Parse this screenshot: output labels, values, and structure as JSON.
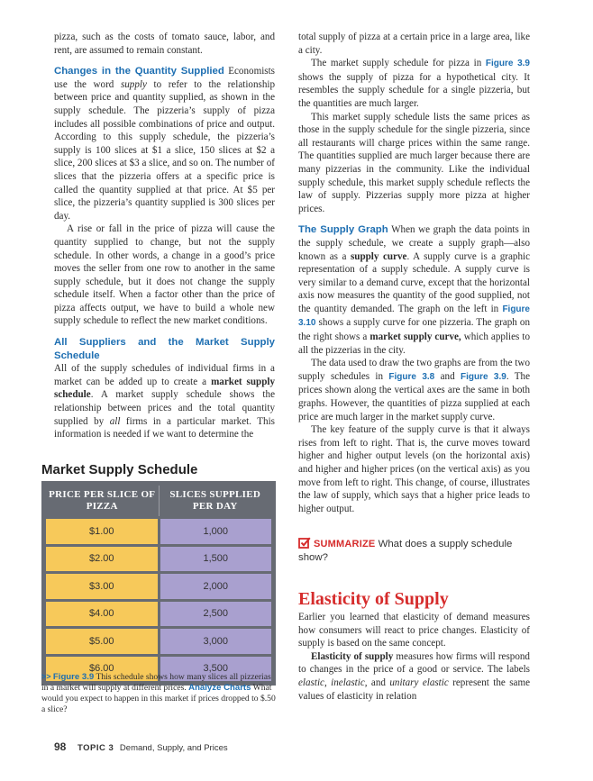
{
  "left_column": {
    "p1": "pizza, such as the costs of tomato sauce, labor, and rent, are assumed to remain constant.",
    "p2_heading": "Changes in the Quantity Supplied",
    "p2_a": " Economists use the word ",
    "p2_italic": "supply",
    "p2_b": " to refer to the relationship between price and quantity supplied, as shown in the supply schedule. The pizzeria’s supply of pizza includes all possible combinations of price and output. According to this supply schedule, the pizzeria’s supply is 100 slices at $1 a slice, 150 slices at $2 a slice, 200 slices at $3 a slice, and so on. The number of slices that the pizzeria offers at a specific price is called the quantity supplied at that price. At $5 per slice, the pizzeria’s quantity supplied is 300 slices per day.",
    "p3": "A rise or fall in the price of pizza will cause the quantity supplied to change, but not the supply schedule. In other words, a change in a good’s price moves the seller from one row to another in the same supply schedule, but it does not change the supply schedule itself. When a factor other than the price of pizza affects output, we have to build a whole new supply schedule to reflect the new market conditions.",
    "p4_heading": "All Suppliers and the Market Supply Schedule",
    "p4_a": "All of the supply schedules of individual firms in a market can be added up to create a ",
    "p4_bold": "market supply schedule",
    "p4_b": ". A market supply schedule shows the relationship between prices and the total quantity supplied by ",
    "p4_italic": "all",
    "p4_c": " firms in a particular market. This information is needed if we want to determine the"
  },
  "right_column": {
    "p1": "total supply of pizza at a certain price in a large area, like a city.",
    "p2_a": "The market supply schedule for pizza in ",
    "p2_fig": "Figure 3.9",
    "p2_b": " shows the supply of pizza for a hypothetical city. It resembles the supply schedule for a single pizzeria, but the quantities are much larger.",
    "p3": "This market supply schedule lists the same prices as those in the supply schedule for the single pizzeria, since all restaurants will charge prices within the same range. The quantities supplied are much larger because there are many pizzerias in the community. Like the individual supply schedule, this market supply schedule reflects the law of supply. Pizzerias supply more pizza at higher prices.",
    "p4_heading": "The Supply Graph",
    "p4_a": " When we graph the data points in the supply schedule, we create a supply graph—also known as a ",
    "p4_bold1": "supply curve",
    "p4_b": ". A supply curve is a graphic representation of a supply schedule. A supply curve is very similar to a demand curve, except that the horizontal axis now measures the quantity of the good supplied, not the quantity demanded. The graph on the left in ",
    "p4_fig": "Figure 3.10",
    "p4_c": " shows a supply curve for one pizzeria. The graph on the right shows a ",
    "p4_bold2": "market supply curve,",
    "p4_d": " which applies to all the pizzerias in the city.",
    "p5_a": "The data used to draw the two graphs are from the two supply schedules in ",
    "p5_fig1": "Figure 3.8",
    "p5_b": " and ",
    "p5_fig2": "Figure 3.9",
    "p5_c": ". The prices shown along the vertical axes are the same in both graphs. However, the quantities of pizza supplied at each price are much larger in the market supply curve.",
    "p6": "The key feature of the supply curve is that it always rises from left to right. That is, the curve moves toward higher and higher output levels (on the horizontal axis) and higher and higher prices (on the vertical axis) as you move from left to right. This change, of course, illustrates the law of supply, which says that a higher price leads to higher output."
  },
  "summarize": {
    "label": "SUMMARIZE",
    "text": " What does a supply schedule show?"
  },
  "elasticity": {
    "heading": "Elasticity of Supply",
    "p1": "Earlier you learned that elasticity of demand measures how consumers will react to price changes. Elasticity of supply is based on the same concept.",
    "p2_bold": "Elasticity of supply",
    "p2_a": " measures how firms will respond to changes in the price of a good or service. The labels ",
    "p2_i1": "elastic",
    "p2_b": ", ",
    "p2_i2": "inelastic",
    "p2_c": ", and ",
    "p2_i3": "unitary elastic",
    "p2_d": " represent the same values of elasticity in relation"
  },
  "chart_data": {
    "type": "table",
    "title": "Market Supply Schedule",
    "columns": [
      "PRICE PER SLICE OF PIZZA",
      "SLICES SUPPLIED PER DAY"
    ],
    "rows": [
      {
        "price": "$1.00",
        "slices": "1,000"
      },
      {
        "price": "$2.00",
        "slices": "1,500"
      },
      {
        "price": "$3.00",
        "slices": "2,000"
      },
      {
        "price": "$4.00",
        "slices": "2,500"
      },
      {
        "price": "$5.00",
        "slices": "3,000"
      },
      {
        "price": "$6.00",
        "slices": "3,500"
      }
    ],
    "colors": {
      "frame": "#676b73",
      "price_cell": "#f7c95a",
      "qty_cell": "#a9a0cf"
    }
  },
  "caption": {
    "arrow": ">>",
    "fig": "Figure 3.9",
    "text": " This schedule shows how many slices all pizzerias in a market will supply at different prices. ",
    "analyze": "Analyze Charts",
    "question": "  What would you expect to happen in this market if prices dropped to $.50 a slice?"
  },
  "footer": {
    "page_number": "98",
    "topic_label": "TOPIC 3",
    "topic_title": "Demand, Supply, and Prices"
  },
  "colors": {
    "accent_blue": "#1e6fb2",
    "accent_red": "#d62c2c"
  }
}
